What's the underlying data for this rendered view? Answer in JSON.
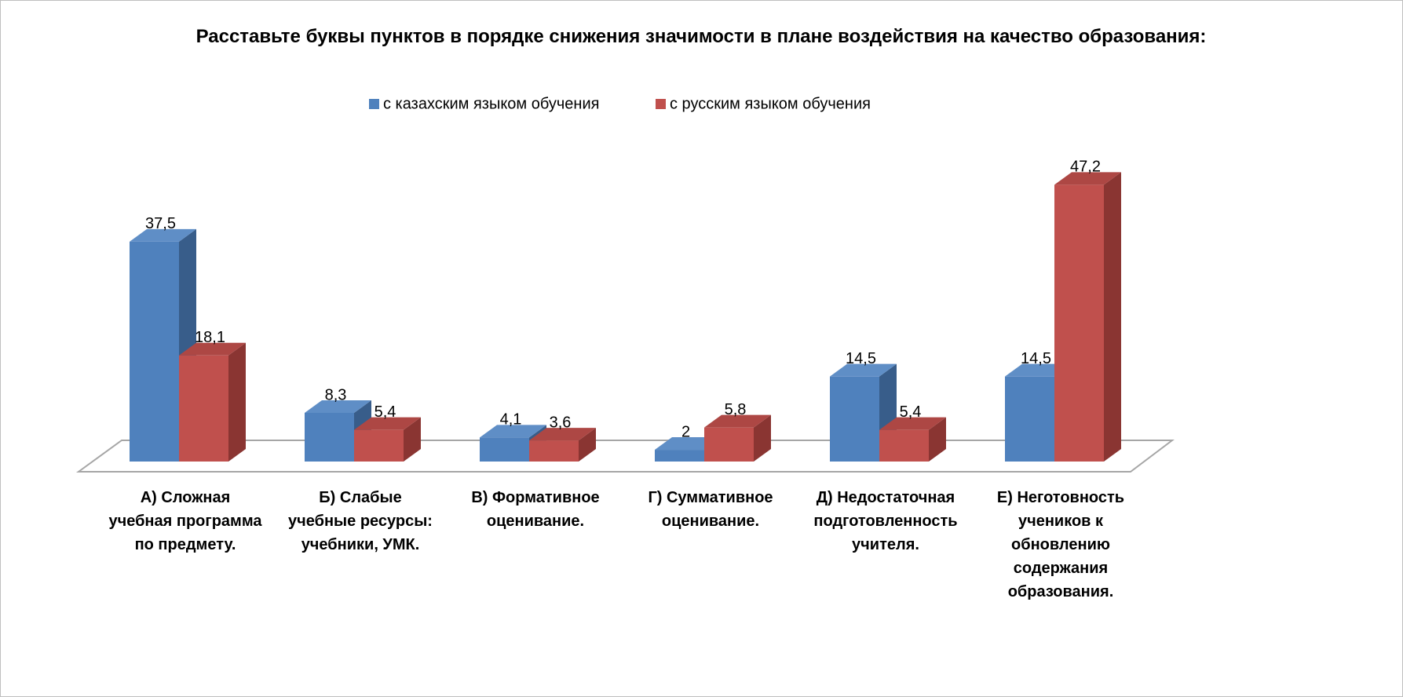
{
  "chart_data": {
    "type": "bar3d",
    "title": "Расставьте буквы пунктов в порядке снижения значимости в плане воздействия на качество образования:",
    "categories": [
      "А) Сложная учебная программа по предмету.",
      "Б) Слабые учебные ресурсы: учебники, УМК.",
      "В) Формативное оценивание.",
      "Г) Суммативное оценивание.",
      "Д) Недостаточная подготовленность учителя.",
      "Е) Неготовность учеников к обновлению содержания образования."
    ],
    "series": [
      {
        "name": "с казахским языком обучения",
        "color": "#4f81bd",
        "side": "#385d8a",
        "top": "#5f8ec6",
        "values": [
          37.5,
          8.3,
          4.1,
          2,
          14.5,
          14.5
        ],
        "value_labels": [
          "37,5",
          "8,3",
          "4,1",
          "2",
          "14,5",
          "14,5"
        ]
      },
      {
        "name": "с русским языком обучения",
        "color": "#c0504d",
        "side": "#8a3532",
        "top": "#ad4744",
        "values": [
          18.1,
          5.4,
          3.6,
          5.8,
          5.4,
          47.2
        ],
        "value_labels": [
          "18,1",
          "5,4",
          "3,6",
          "5,8",
          "5,4",
          "47,2"
        ]
      }
    ],
    "legend": "top"
  }
}
